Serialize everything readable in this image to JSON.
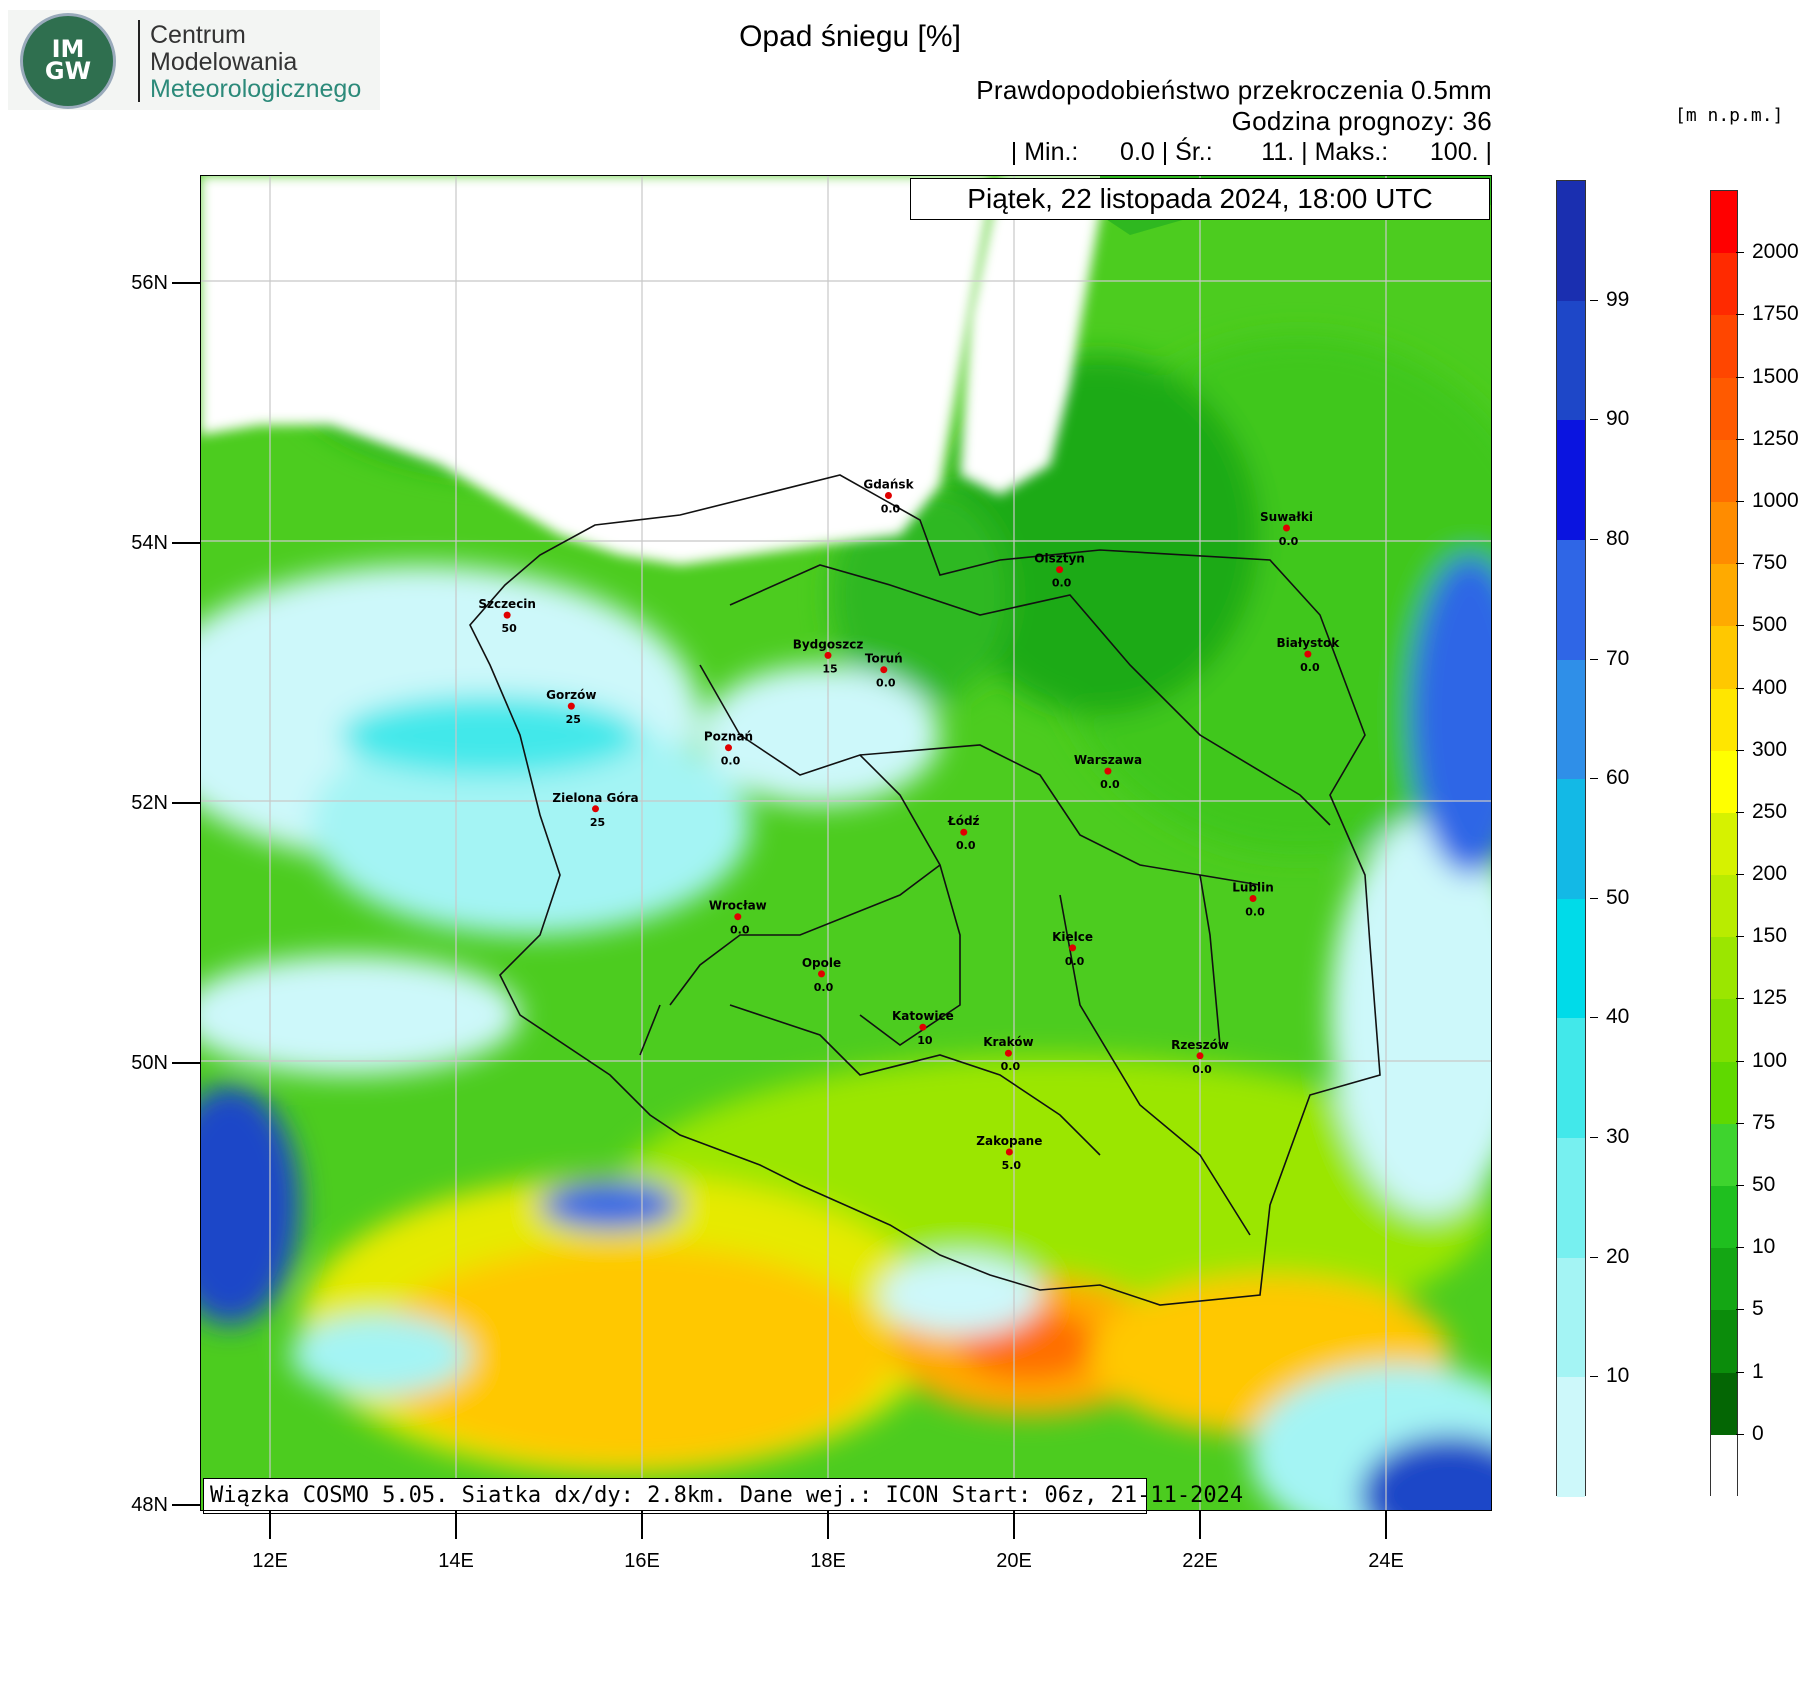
{
  "logo": {
    "org_line1": "Centrum",
    "org_line2": "Modelowania",
    "org_line3": "Meteorologicznego",
    "emblem_text": "IMGW",
    "colors": {
      "green": "#2f6f4f",
      "teal": "#2c8a7a"
    }
  },
  "header": {
    "title": "Opad śniegu [%]",
    "subtitle": "Prawdopodobieństwo przekroczenia 0.5mm",
    "forecast_hour": "Godzina prognozy: 36",
    "stats": "| Min.:      0.0 | Śr.:       11. | Maks.:      100. |",
    "date": "Piątek, 22 listopada 2024, 18:00 UTC"
  },
  "footer": {
    "model_info": "Wiązka COSMO 5.05. Siatka dx/dy: 2.8km. Dane wej.: ICON Start: 06z, 21-11-2024"
  },
  "axes": {
    "lat_labels": [
      "56N",
      "54N",
      "52N",
      "50N",
      "48N"
    ],
    "lat_values": [
      56,
      54,
      52,
      50,
      48
    ],
    "lon_labels": [
      "12E",
      "14E",
      "16E",
      "18E",
      "20E",
      "22E",
      "24E"
    ],
    "lon_values": [
      12,
      14,
      16,
      18,
      20,
      22,
      24
    ]
  },
  "cities": [
    {
      "name": "Gdańsk",
      "value": "0.0",
      "lat": 54.35,
      "lon": 18.65
    },
    {
      "name": "Suwałki",
      "value": "0.0",
      "lat": 54.1,
      "lon": 22.93
    },
    {
      "name": "Olsztyn",
      "value": "0.0",
      "lat": 53.78,
      "lon": 20.49
    },
    {
      "name": "Szczecin",
      "value": "50",
      "lat": 53.43,
      "lon": 14.55
    },
    {
      "name": "Bydgoszcz",
      "value": "15",
      "lat": 53.12,
      "lon": 18.0
    },
    {
      "name": "Toruń",
      "value": "0.0",
      "lat": 53.01,
      "lon": 18.6
    },
    {
      "name": "Białystok",
      "value": "0.0",
      "lat": 53.13,
      "lon": 23.16
    },
    {
      "name": "Gorzów",
      "value": "25",
      "lat": 52.73,
      "lon": 15.24
    },
    {
      "name": "Poznań",
      "value": "0.0",
      "lat": 52.41,
      "lon": 16.93
    },
    {
      "name": "Warszawa",
      "value": "0.0",
      "lat": 52.23,
      "lon": 21.01
    },
    {
      "name": "Zielona Góra",
      "value": "25",
      "lat": 51.94,
      "lon": 15.5
    },
    {
      "name": "Łódź",
      "value": "0.0",
      "lat": 51.76,
      "lon": 19.46
    },
    {
      "name": "Lublin",
      "value": "0.0",
      "lat": 51.25,
      "lon": 22.57
    },
    {
      "name": "Wrocław",
      "value": "0.0",
      "lat": 51.11,
      "lon": 17.03
    },
    {
      "name": "Kielce",
      "value": "0.0",
      "lat": 50.87,
      "lon": 20.63
    },
    {
      "name": "Opole",
      "value": "0.0",
      "lat": 50.67,
      "lon": 17.93
    },
    {
      "name": "Katowice",
      "value": "10",
      "lat": 50.26,
      "lon": 19.02
    },
    {
      "name": "Kraków",
      "value": "0.0",
      "lat": 50.06,
      "lon": 19.94
    },
    {
      "name": "Rzeszów",
      "value": "0.0",
      "lat": 50.04,
      "lon": 22.0
    },
    {
      "name": "Zakopane",
      "value": "5.0",
      "lat": 49.3,
      "lon": 19.95
    }
  ],
  "snow_colorbar": {
    "labels": [
      "99",
      "90",
      "80",
      "70",
      "60",
      "50",
      "40",
      "30",
      "20",
      "10"
    ],
    "colors": [
      "#1a2fb0",
      "#1e47c8",
      "#0a14e0",
      "#2f66e6",
      "#2f8fe8",
      "#13b9e6",
      "#00dbe9",
      "#42e8ea",
      "#77f0f0",
      "#a4f4f4",
      "#cdf8fa"
    ]
  },
  "elevation_colorbar": {
    "unit": "[m n.p.m.]",
    "labels": [
      "2000",
      "1750",
      "1500",
      "1250",
      "1000",
      "750",
      "500",
      "400",
      "300",
      "250",
      "200",
      "150",
      "125",
      "100",
      "75",
      "50",
      "10",
      "5",
      "1",
      "0"
    ],
    "colors": [
      "#ff0000",
      "#ff2a00",
      "#ff4600",
      "#ff5a00",
      "#ff6e00",
      "#ff8c00",
      "#ffaa00",
      "#ffc800",
      "#ffe600",
      "#ffff00",
      "#d6f200",
      "#b9ec00",
      "#9be600",
      "#80e000",
      "#5fd900",
      "#3ed42e",
      "#1fbf1f",
      "#14a614",
      "#0b8c0b",
      "#046604",
      "#ffffff"
    ]
  }
}
